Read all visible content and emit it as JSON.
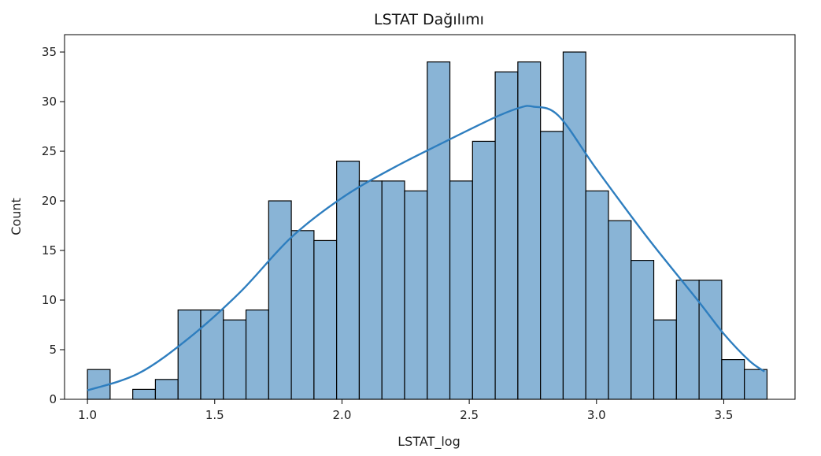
{
  "chart_data": {
    "type": "bar",
    "title": "LSTAT Dağılımı",
    "xlabel": "LSTAT_log",
    "ylabel": "Count",
    "xlim": [
      0.91,
      3.78
    ],
    "ylim": [
      0,
      36.75
    ],
    "xticks": [
      1.0,
      1.5,
      2.0,
      2.5,
      3.0,
      3.5
    ],
    "xtick_labels": [
      "1.0",
      "1.5",
      "2.0",
      "2.5",
      "3.0",
      "3.5"
    ],
    "yticks": [
      0,
      5,
      10,
      15,
      20,
      25,
      30,
      35
    ],
    "ytick_labels": [
      "0",
      "5",
      "10",
      "15",
      "20",
      "25",
      "30",
      "35"
    ],
    "bin_start": 1.0,
    "bin_width": 0.089,
    "values": [
      3,
      0,
      1,
      2,
      9,
      9,
      8,
      9,
      20,
      17,
      16,
      24,
      22,
      22,
      21,
      34,
      22,
      26,
      33,
      34,
      27,
      35,
      21,
      18,
      14,
      8,
      12,
      12,
      4,
      3
    ],
    "kde": {
      "x": [
        1.0,
        1.2,
        1.4,
        1.6,
        1.8,
        2.0,
        2.2,
        2.4,
        2.6,
        2.7,
        2.75,
        2.85,
        3.0,
        3.2,
        3.4,
        3.5,
        3.6,
        3.66
      ],
      "y": [
        0.9,
        2.6,
        6.2,
        10.8,
        16.3,
        20.3,
        23.3,
        25.9,
        28.4,
        29.4,
        29.5,
        28.6,
        23.2,
        16.3,
        9.9,
        6.6,
        3.9,
        2.8
      ]
    },
    "bar_color": "#89b4d6",
    "bar_edge": "#000000",
    "kde_color": "#2e7ebf",
    "grid": false
  }
}
